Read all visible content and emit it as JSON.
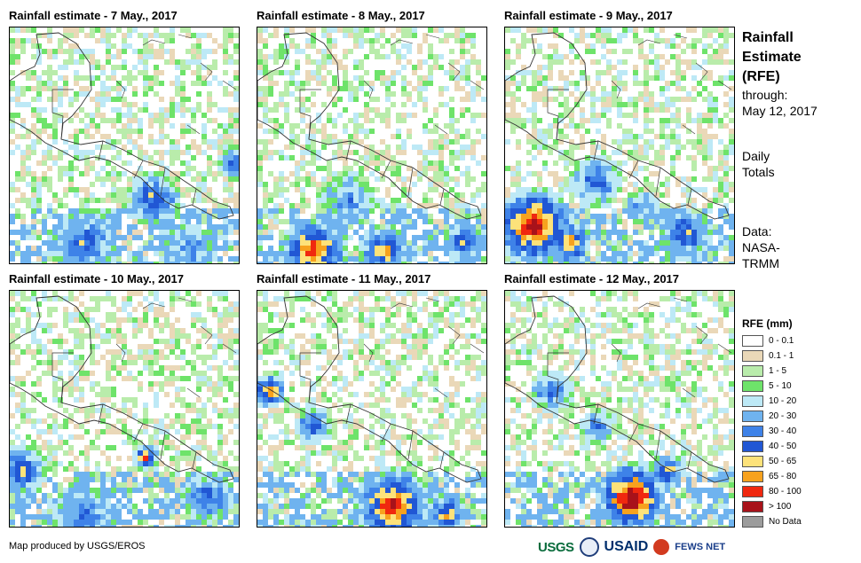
{
  "panels": [
    {
      "title": "Rainfall estimate - 7 May., 2017"
    },
    {
      "title": "Rainfall estimate - 8 May., 2017"
    },
    {
      "title": "Rainfall estimate - 9 May., 2017"
    },
    {
      "title": "Rainfall estimate - 10 May., 2017"
    },
    {
      "title": "Rainfall estimate - 11 May., 2017"
    },
    {
      "title": "Rainfall estimate - 12 May., 2017"
    }
  ],
  "side": {
    "title_lines": [
      "Rainfall",
      "Estimate",
      "(RFE)"
    ],
    "through_label": "through:",
    "through_date": "May 12, 2017",
    "totals_lines": [
      "Daily",
      "Totals"
    ],
    "data_lines": [
      "Data:",
      "NASA-",
      "TRMM"
    ]
  },
  "legend": {
    "title": "RFE (mm)",
    "items": [
      {
        "label": "0 - 0.1",
        "color": "#ffffff"
      },
      {
        "label": "0.1 - 1",
        "color": "#ead8b8"
      },
      {
        "label": "1 - 5",
        "color": "#b9ecab"
      },
      {
        "label": "5 - 10",
        "color": "#6ee36a"
      },
      {
        "label": "10 - 20",
        "color": "#bde9f6"
      },
      {
        "label": "20 - 30",
        "color": "#6fb3ef"
      },
      {
        "label": "30 - 40",
        "color": "#3e82e8"
      },
      {
        "label": "40 - 50",
        "color": "#2157d4"
      },
      {
        "label": "50 - 65",
        "color": "#fde27a"
      },
      {
        "label": "65 - 80",
        "color": "#f7a21e"
      },
      {
        "label": "80 - 100",
        "color": "#f0280f"
      },
      {
        "label": "> 100",
        "color": "#a8121a"
      },
      {
        "label": "No Data",
        "color": "#9c9c9c"
      }
    ]
  },
  "credit": "Map produced by USGS/EROS",
  "logos": {
    "usgs": "USGS",
    "usaid": "USAID",
    "fews": "FEWS NET"
  }
}
